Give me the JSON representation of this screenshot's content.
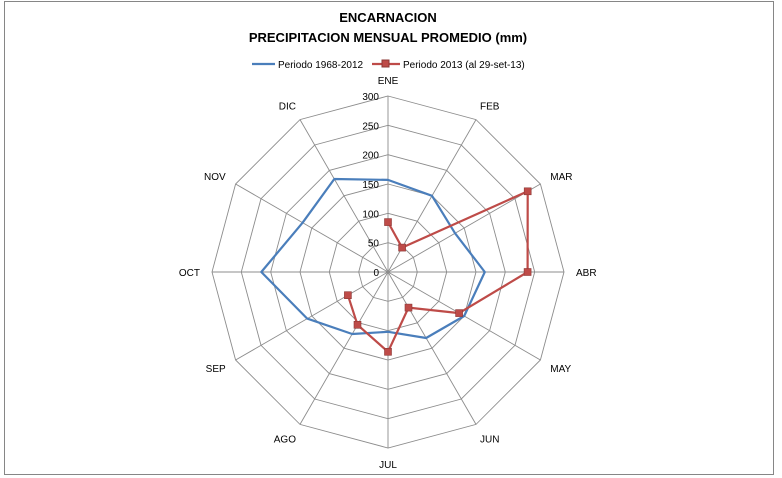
{
  "chart_data": {
    "type": "radar",
    "title": "ENCARNACION",
    "subtitle": "PRECIPITACION MENSUAL PROMEDIO  (mm)",
    "categories": [
      "ENE",
      "FEB",
      "MAR",
      "ABR",
      "MAY",
      "JUN",
      "JUL",
      "AGO",
      "SEP",
      "OCT",
      "NOV",
      "DIC"
    ],
    "r_ticks": [
      0,
      50,
      100,
      150,
      200,
      250,
      300
    ],
    "rlim": [
      0,
      300
    ],
    "legend_position": "top",
    "series": [
      {
        "name": "Periodo 1968-2012",
        "color": "#4a7ebb",
        "marker": "none",
        "values": [
          157,
          150,
          132,
          165,
          150,
          130,
          102,
          122,
          159,
          216,
          168,
          183
        ]
      },
      {
        "name": "Periodo 2013 (al 29-set-13)",
        "color": "#be4b48",
        "marker": "square",
        "values": [
          85,
          48,
          275,
          238,
          140,
          70,
          136,
          104,
          79,
          null,
          null,
          null
        ]
      }
    ]
  }
}
